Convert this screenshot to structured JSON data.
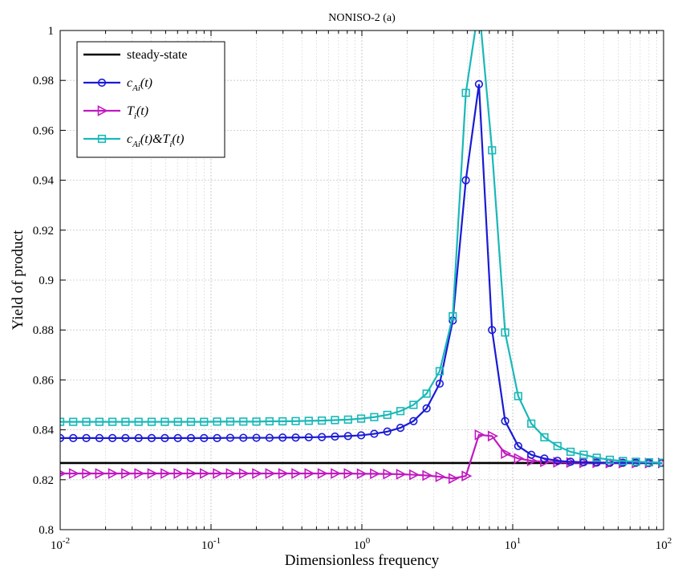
{
  "chart_data": {
    "type": "line",
    "title": "NONISO-2 (a)",
    "xlabel": "Dimensionless frequency",
    "ylabel": "Yield of product",
    "xscale": "log",
    "xlim": [
      0.01,
      100
    ],
    "ylim": [
      0.8,
      1.0
    ],
    "grid": true,
    "legend_position": "top-left",
    "x_ticks": [
      {
        "value": 0.01,
        "base": "10",
        "exp": "-2"
      },
      {
        "value": 0.1,
        "base": "10",
        "exp": "-1"
      },
      {
        "value": 1,
        "base": "10",
        "exp": "0"
      },
      {
        "value": 10,
        "base": "10",
        "exp": "1"
      },
      {
        "value": 100,
        "base": "10",
        "exp": "2"
      }
    ],
    "y_ticks": [
      "0.8",
      "0.82",
      "0.84",
      "0.86",
      "0.88",
      "0.9",
      "0.92",
      "0.94",
      "0.96",
      "0.98",
      "1"
    ],
    "x": [
      0.01,
      0.0122,
      0.0149,
      0.0182,
      0.0222,
      0.0271,
      0.0331,
      0.0404,
      0.0494,
      0.0603,
      0.0736,
      0.0899,
      0.1097,
      0.134,
      0.1637,
      0.1999,
      0.2442,
      0.2982,
      0.3641,
      0.4446,
      0.543,
      0.6632,
      0.8098,
      0.9889,
      1.2076,
      1.4747,
      1.8009,
      2.1992,
      2.6855,
      3.2795,
      4.0048,
      4.8906,
      5.9724,
      7.2933,
      8.9062,
      10.876,
      13.282,
      16.219,
      19.806,
      24.187,
      29.537,
      36.07,
      44.048,
      53.79,
      65.688,
      80.216,
      97.958
    ],
    "series": [
      {
        "name": "steady-state",
        "color": "#000000",
        "marker": "none",
        "values": [
          0.8267,
          0.8267,
          0.8267,
          0.8267,
          0.8267,
          0.8267,
          0.8267,
          0.8267,
          0.8267,
          0.8267,
          0.8267,
          0.8267,
          0.8267,
          0.8267,
          0.8267,
          0.8267,
          0.8267,
          0.8267,
          0.8267,
          0.8267,
          0.8267,
          0.8267,
          0.8267,
          0.8267,
          0.8267,
          0.8267,
          0.8267,
          0.8267,
          0.8267,
          0.8267,
          0.8267,
          0.8267,
          0.8267,
          0.8267,
          0.8267,
          0.8267,
          0.8267,
          0.8267,
          0.8267,
          0.8267,
          0.8267,
          0.8267,
          0.8267,
          0.8267,
          0.8267,
          0.8267,
          0.8267
        ]
      },
      {
        "name": "c_Ai(t)",
        "color": "#1a1ad6",
        "marker": "circle",
        "values": [
          0.8367,
          0.8367,
          0.8367,
          0.8367,
          0.8367,
          0.8367,
          0.8367,
          0.8367,
          0.8367,
          0.8367,
          0.8367,
          0.8367,
          0.8367,
          0.8368,
          0.8368,
          0.8368,
          0.8368,
          0.8369,
          0.8369,
          0.837,
          0.8371,
          0.8373,
          0.8375,
          0.8378,
          0.8384,
          0.8393,
          0.8408,
          0.8435,
          0.8486,
          0.8585,
          0.8838,
          0.94,
          0.9785,
          0.88,
          0.8435,
          0.8335,
          0.83,
          0.8285,
          0.8276,
          0.8272,
          0.827,
          0.8269,
          0.8268,
          0.8268,
          0.8268,
          0.8267,
          0.8267
        ]
      },
      {
        "name": "T_i(t)",
        "color": "#c01ac0",
        "marker": "triangle-right",
        "values": [
          0.8225,
          0.8225,
          0.8225,
          0.8225,
          0.8225,
          0.8225,
          0.8225,
          0.8225,
          0.8225,
          0.8225,
          0.8225,
          0.8225,
          0.8225,
          0.8225,
          0.8225,
          0.8225,
          0.8225,
          0.8225,
          0.8225,
          0.8225,
          0.8225,
          0.8225,
          0.8225,
          0.8224,
          0.8224,
          0.8223,
          0.8222,
          0.822,
          0.8217,
          0.8212,
          0.8205,
          0.8215,
          0.838,
          0.8375,
          0.8305,
          0.8285,
          0.8276,
          0.8272,
          0.827,
          0.8269,
          0.8268,
          0.8268,
          0.8267,
          0.8267,
          0.8267,
          0.8267,
          0.8267
        ]
      },
      {
        "name": "c_Ai(t)&T_i(t)",
        "color": "#1ab8b8",
        "marker": "square",
        "values": [
          0.8432,
          0.8432,
          0.8432,
          0.8432,
          0.8432,
          0.8432,
          0.8432,
          0.8432,
          0.8432,
          0.8432,
          0.8432,
          0.8432,
          0.8433,
          0.8433,
          0.8433,
          0.8433,
          0.8434,
          0.8434,
          0.8435,
          0.8436,
          0.8437,
          0.8439,
          0.8441,
          0.8445,
          0.8451,
          0.846,
          0.8475,
          0.85,
          0.8545,
          0.8635,
          0.8855,
          0.975,
          1.01,
          0.952,
          0.879,
          0.8535,
          0.8425,
          0.837,
          0.8335,
          0.8312,
          0.83,
          0.8288,
          0.828,
          0.8275,
          0.8272,
          0.827,
          0.8268
        ]
      }
    ],
    "legend": [
      {
        "base": "steady-state",
        "sub": "",
        "mid": "",
        "sub2": "",
        "tail": ""
      },
      {
        "base": "c",
        "sub": "Ai",
        "mid": "(t)",
        "sub2": "",
        "tail": ""
      },
      {
        "base": "T",
        "sub": "i",
        "mid": "(t)",
        "sub2": "",
        "tail": ""
      },
      {
        "base": "c",
        "sub": "Ai",
        "mid": "(t)&T",
        "sub2": "i",
        "tail": "(t)"
      }
    ]
  }
}
